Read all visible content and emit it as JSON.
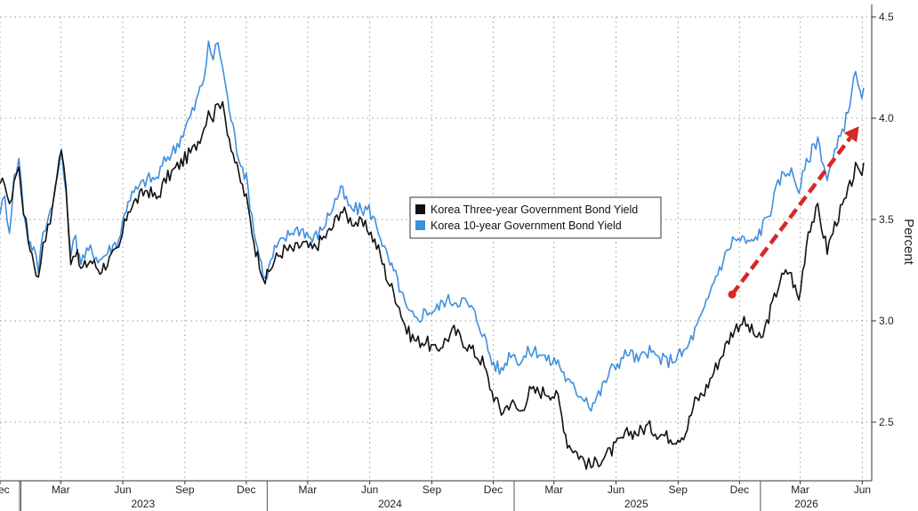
{
  "colors": {
    "three_year": "#111111",
    "ten_year": "#3f8fdc",
    "arrow": "#d62828",
    "grid": "#9a9a9a"
  },
  "chart_data": {
    "type": "line",
    "title": "",
    "xlabel": "",
    "ylabel": "Percent",
    "ylim": [
      2.2,
      4.55
    ],
    "y_ticks": [
      "4.5",
      "4.0",
      "3.5",
      "3.0",
      "2.5"
    ],
    "y_tick_values": [
      4.5,
      4.0,
      3.5,
      3.0,
      2.5
    ],
    "grid": true,
    "legend_position": "center",
    "x_range": [
      "2022-12-01",
      "2026-06-15"
    ],
    "month_ticks": [
      {
        "label": "Dec",
        "date": "2022-12-01"
      },
      {
        "label": "Mar",
        "date": "2023-03-01"
      },
      {
        "label": "Jun",
        "date": "2023-06-01"
      },
      {
        "label": "Sep",
        "date": "2023-09-01"
      },
      {
        "label": "Dec",
        "date": "2023-12-01"
      },
      {
        "label": "Mar",
        "date": "2024-03-01"
      },
      {
        "label": "Jun",
        "date": "2024-06-01"
      },
      {
        "label": "Sep",
        "date": "2024-09-01"
      },
      {
        "label": "Dec",
        "date": "2024-12-01"
      },
      {
        "label": "Mar",
        "date": "2025-03-01"
      },
      {
        "label": "Jun",
        "date": "2025-06-01"
      },
      {
        "label": "Sep",
        "date": "2025-09-01"
      },
      {
        "label": "Dec",
        "date": "2025-12-01"
      },
      {
        "label": "Mar",
        "date": "2026-03-01"
      },
      {
        "label": "Jun",
        "date": "2026-06-01"
      }
    ],
    "year_labels": [
      {
        "label": "2023",
        "date": "2023-07-01"
      },
      {
        "label": "2024",
        "date": "2024-07-01"
      },
      {
        "label": "2025",
        "date": "2025-07-01"
      },
      {
        "label": "2026",
        "date": "2026-03-10"
      }
    ],
    "year_boundaries": [
      "2023-01-01",
      "2024-01-01",
      "2025-01-01",
      "2026-01-01"
    ],
    "series": [
      {
        "name": "Korea Three-year Government Bond Yield",
        "points": [
          [
            "2022-12-01",
            3.65
          ],
          [
            "2022-12-08",
            3.7
          ],
          [
            "2022-12-15",
            3.55
          ],
          [
            "2022-12-22",
            3.7
          ],
          [
            "2022-12-29",
            3.75
          ],
          [
            "2023-01-05",
            3.55
          ],
          [
            "2023-01-12",
            3.4
          ],
          [
            "2023-01-20",
            3.3
          ],
          [
            "2023-01-27",
            3.2
          ],
          [
            "2023-02-03",
            3.4
          ],
          [
            "2023-02-10",
            3.45
          ],
          [
            "2023-02-17",
            3.55
          ],
          [
            "2023-02-24",
            3.75
          ],
          [
            "2023-03-02",
            3.85
          ],
          [
            "2023-03-09",
            3.65
          ],
          [
            "2023-03-16",
            3.3
          ],
          [
            "2023-03-23",
            3.35
          ],
          [
            "2023-03-31",
            3.25
          ],
          [
            "2023-04-14",
            3.3
          ],
          [
            "2023-04-28",
            3.25
          ],
          [
            "2023-05-12",
            3.3
          ],
          [
            "2023-05-26",
            3.35
          ],
          [
            "2023-06-09",
            3.55
          ],
          [
            "2023-06-23",
            3.6
          ],
          [
            "2023-07-07",
            3.65
          ],
          [
            "2023-07-21",
            3.6
          ],
          [
            "2023-08-04",
            3.7
          ],
          [
            "2023-08-18",
            3.75
          ],
          [
            "2023-09-01",
            3.8
          ],
          [
            "2023-09-15",
            3.85
          ],
          [
            "2023-09-29",
            3.95
          ],
          [
            "2023-10-06",
            4.05
          ],
          [
            "2023-10-13",
            4.0
          ],
          [
            "2023-10-20",
            4.1
          ],
          [
            "2023-10-27",
            4.05
          ],
          [
            "2023-11-03",
            3.95
          ],
          [
            "2023-11-17",
            3.75
          ],
          [
            "2023-12-01",
            3.6
          ],
          [
            "2023-12-15",
            3.35
          ],
          [
            "2023-12-29",
            3.2
          ],
          [
            "2024-01-12",
            3.3
          ],
          [
            "2024-01-26",
            3.35
          ],
          [
            "2024-02-09",
            3.35
          ],
          [
            "2024-02-23",
            3.38
          ],
          [
            "2024-03-08",
            3.35
          ],
          [
            "2024-03-22",
            3.4
          ],
          [
            "2024-04-05",
            3.45
          ],
          [
            "2024-04-19",
            3.55
          ],
          [
            "2024-05-03",
            3.5
          ],
          [
            "2024-05-17",
            3.48
          ],
          [
            "2024-05-31",
            3.45
          ],
          [
            "2024-06-14",
            3.35
          ],
          [
            "2024-06-28",
            3.2
          ],
          [
            "2024-07-12",
            3.1
          ],
          [
            "2024-07-26",
            2.95
          ],
          [
            "2024-08-09",
            2.9
          ],
          [
            "2024-08-23",
            2.9
          ],
          [
            "2024-09-06",
            2.85
          ],
          [
            "2024-09-20",
            2.9
          ],
          [
            "2024-10-04",
            2.95
          ],
          [
            "2024-10-18",
            2.9
          ],
          [
            "2024-11-01",
            2.85
          ],
          [
            "2024-11-15",
            2.8
          ],
          [
            "2024-11-29",
            2.65
          ],
          [
            "2024-12-13",
            2.55
          ],
          [
            "2024-12-27",
            2.6
          ],
          [
            "2025-01-10",
            2.55
          ],
          [
            "2025-01-24",
            2.65
          ],
          [
            "2025-02-07",
            2.65
          ],
          [
            "2025-02-21",
            2.65
          ],
          [
            "2025-03-07",
            2.62
          ],
          [
            "2025-03-21",
            2.4
          ],
          [
            "2025-04-04",
            2.35
          ],
          [
            "2025-04-18",
            2.3
          ],
          [
            "2025-04-25",
            2.28
          ],
          [
            "2025-05-09",
            2.32
          ],
          [
            "2025-05-23",
            2.35
          ],
          [
            "2025-06-06",
            2.4
          ],
          [
            "2025-06-20",
            2.45
          ],
          [
            "2025-07-04",
            2.45
          ],
          [
            "2025-07-18",
            2.48
          ],
          [
            "2025-08-01",
            2.45
          ],
          [
            "2025-08-15",
            2.43
          ],
          [
            "2025-08-29",
            2.42
          ],
          [
            "2025-09-12",
            2.45
          ],
          [
            "2025-09-26",
            2.6
          ],
          [
            "2025-10-10",
            2.65
          ],
          [
            "2025-10-24",
            2.75
          ],
          [
            "2025-11-07",
            2.85
          ],
          [
            "2025-11-21",
            2.95
          ],
          [
            "2025-12-05",
            3.0
          ],
          [
            "2025-12-19",
            2.95
          ],
          [
            "2026-01-02",
            2.9
          ],
          [
            "2026-01-16",
            3.05
          ],
          [
            "2026-01-30",
            3.2
          ],
          [
            "2026-02-13",
            3.25
          ],
          [
            "2026-02-27",
            3.1
          ],
          [
            "2026-03-13",
            3.45
          ],
          [
            "2026-03-27",
            3.55
          ],
          [
            "2026-04-10",
            3.35
          ],
          [
            "2026-04-24",
            3.5
          ],
          [
            "2026-05-08",
            3.6
          ],
          [
            "2026-05-22",
            3.75
          ],
          [
            "2026-05-29",
            3.7
          ],
          [
            "2026-06-03",
            3.78
          ]
        ]
      },
      {
        "name": "Korea 10-year Government Bond Yield",
        "points": [
          [
            "2022-12-01",
            3.55
          ],
          [
            "2022-12-08",
            3.6
          ],
          [
            "2022-12-15",
            3.45
          ],
          [
            "2022-12-22",
            3.7
          ],
          [
            "2022-12-29",
            3.8
          ],
          [
            "2023-01-05",
            3.55
          ],
          [
            "2023-01-12",
            3.4
          ],
          [
            "2023-01-20",
            3.35
          ],
          [
            "2023-01-27",
            3.25
          ],
          [
            "2023-02-03",
            3.45
          ],
          [
            "2023-02-10",
            3.5
          ],
          [
            "2023-02-17",
            3.6
          ],
          [
            "2023-02-24",
            3.7
          ],
          [
            "2023-03-02",
            3.85
          ],
          [
            "2023-03-09",
            3.6
          ],
          [
            "2023-03-16",
            3.35
          ],
          [
            "2023-03-23",
            3.4
          ],
          [
            "2023-03-31",
            3.3
          ],
          [
            "2023-04-14",
            3.35
          ],
          [
            "2023-04-28",
            3.3
          ],
          [
            "2023-05-12",
            3.35
          ],
          [
            "2023-05-26",
            3.4
          ],
          [
            "2023-06-09",
            3.6
          ],
          [
            "2023-06-23",
            3.65
          ],
          [
            "2023-07-07",
            3.7
          ],
          [
            "2023-07-21",
            3.7
          ],
          [
            "2023-08-04",
            3.8
          ],
          [
            "2023-08-18",
            3.85
          ],
          [
            "2023-09-01",
            3.95
          ],
          [
            "2023-09-15",
            4.05
          ],
          [
            "2023-09-29",
            4.2
          ],
          [
            "2023-10-06",
            4.35
          ],
          [
            "2023-10-13",
            4.3
          ],
          [
            "2023-10-20",
            4.38
          ],
          [
            "2023-10-27",
            4.25
          ],
          [
            "2023-11-03",
            4.1
          ],
          [
            "2023-11-17",
            3.85
          ],
          [
            "2023-12-01",
            3.7
          ],
          [
            "2023-12-15",
            3.4
          ],
          [
            "2023-12-29",
            3.2
          ],
          [
            "2024-01-12",
            3.35
          ],
          [
            "2024-01-26",
            3.4
          ],
          [
            "2024-02-09",
            3.45
          ],
          [
            "2024-02-23",
            3.45
          ],
          [
            "2024-03-08",
            3.4
          ],
          [
            "2024-03-22",
            3.45
          ],
          [
            "2024-04-05",
            3.55
          ],
          [
            "2024-04-19",
            3.65
          ],
          [
            "2024-05-03",
            3.55
          ],
          [
            "2024-05-17",
            3.55
          ],
          [
            "2024-05-31",
            3.55
          ],
          [
            "2024-06-14",
            3.45
          ],
          [
            "2024-06-28",
            3.3
          ],
          [
            "2024-07-12",
            3.2
          ],
          [
            "2024-07-26",
            3.05
          ],
          [
            "2024-08-09",
            3.0
          ],
          [
            "2024-08-23",
            3.05
          ],
          [
            "2024-09-06",
            3.05
          ],
          [
            "2024-09-20",
            3.1
          ],
          [
            "2024-10-04",
            3.1
          ],
          [
            "2024-10-18",
            3.1
          ],
          [
            "2024-11-01",
            3.05
          ],
          [
            "2024-11-15",
            2.95
          ],
          [
            "2024-11-29",
            2.8
          ],
          [
            "2024-12-13",
            2.75
          ],
          [
            "2024-12-27",
            2.85
          ],
          [
            "2025-01-10",
            2.8
          ],
          [
            "2025-01-24",
            2.85
          ],
          [
            "2025-02-07",
            2.85
          ],
          [
            "2025-02-21",
            2.8
          ],
          [
            "2025-03-07",
            2.8
          ],
          [
            "2025-03-21",
            2.7
          ],
          [
            "2025-04-04",
            2.65
          ],
          [
            "2025-04-18",
            2.62
          ],
          [
            "2025-04-25",
            2.58
          ],
          [
            "2025-05-09",
            2.65
          ],
          [
            "2025-05-23",
            2.75
          ],
          [
            "2025-06-06",
            2.8
          ],
          [
            "2025-06-20",
            2.85
          ],
          [
            "2025-07-04",
            2.8
          ],
          [
            "2025-07-18",
            2.85
          ],
          [
            "2025-08-01",
            2.82
          ],
          [
            "2025-08-15",
            2.8
          ],
          [
            "2025-08-29",
            2.82
          ],
          [
            "2025-09-12",
            2.85
          ],
          [
            "2025-09-26",
            2.95
          ],
          [
            "2025-10-10",
            3.05
          ],
          [
            "2025-10-24",
            3.2
          ],
          [
            "2025-11-07",
            3.3
          ],
          [
            "2025-11-21",
            3.4
          ],
          [
            "2025-12-05",
            3.4
          ],
          [
            "2025-12-19",
            3.38
          ],
          [
            "2026-01-02",
            3.45
          ],
          [
            "2026-01-16",
            3.55
          ],
          [
            "2026-01-30",
            3.7
          ],
          [
            "2026-02-13",
            3.75
          ],
          [
            "2026-02-27",
            3.65
          ],
          [
            "2026-03-13",
            3.8
          ],
          [
            "2026-03-27",
            3.9
          ],
          [
            "2026-04-10",
            3.7
          ],
          [
            "2026-04-24",
            3.85
          ],
          [
            "2026-05-08",
            4.0
          ],
          [
            "2026-05-22",
            4.22
          ],
          [
            "2026-05-29",
            4.1
          ],
          [
            "2026-06-03",
            4.15
          ]
        ]
      }
    ],
    "annotation": {
      "type": "arrow",
      "from": [
        "2025-11-20",
        3.13
      ],
      "to": [
        "2026-05-27",
        3.96
      ]
    }
  }
}
